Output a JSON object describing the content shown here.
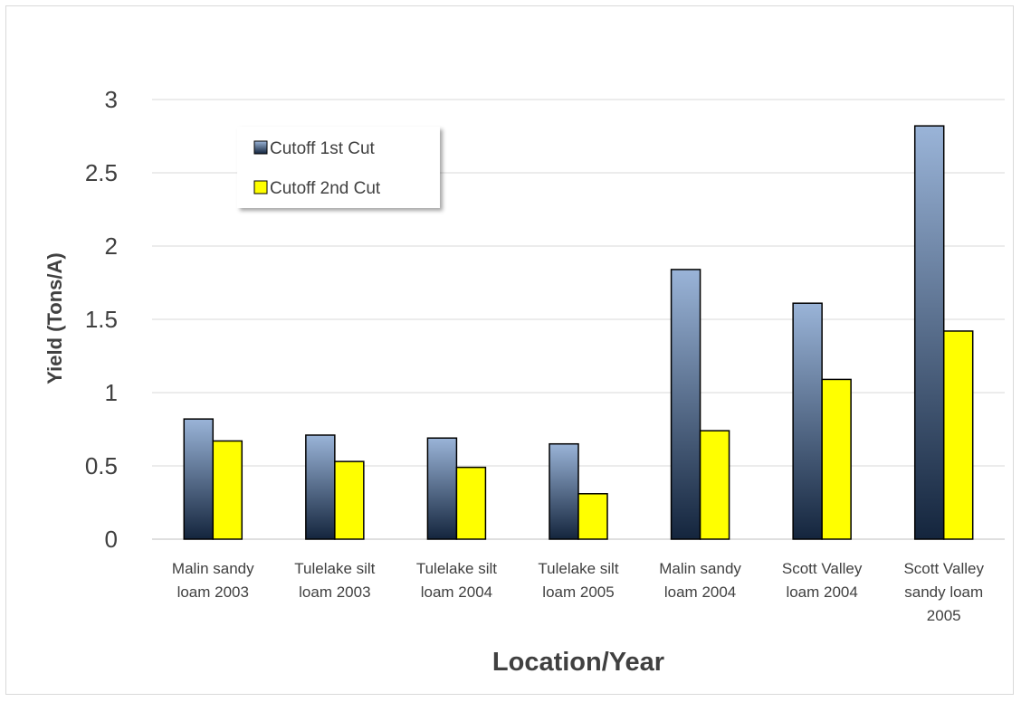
{
  "chart_data": {
    "type": "bar",
    "title": "",
    "xlabel": "Location/Year",
    "ylabel": "Yield (Tons/A)",
    "ylim": [
      0,
      3
    ],
    "yticks": [
      "0",
      "0.5",
      "1",
      "1.5",
      "2",
      "2.5",
      "3"
    ],
    "grid": true,
    "legend_position": "top-left",
    "categories": [
      [
        "Malin sandy",
        "loam 2003"
      ],
      [
        "Tulelake silt",
        "loam 2003"
      ],
      [
        "Tulelake silt",
        "loam 2004"
      ],
      [
        "Tulelake silt",
        "loam 2005"
      ],
      [
        "Malin sandy",
        "loam 2004"
      ],
      [
        "Scott Valley",
        "loam 2004"
      ],
      [
        "Scott Valley",
        "sandy loam",
        "2005"
      ]
    ],
    "series": [
      {
        "name": "Cutoff 1st Cut",
        "color_top": "#9ab4d8",
        "color_bottom": "#14253d",
        "values": [
          0.82,
          0.71,
          0.69,
          0.65,
          1.84,
          1.61,
          2.82
        ]
      },
      {
        "name": "Cutoff 2nd Cut",
        "color": "#ffff00",
        "values": [
          0.67,
          0.53,
          0.49,
          0.31,
          0.74,
          1.09,
          1.42
        ]
      }
    ]
  }
}
